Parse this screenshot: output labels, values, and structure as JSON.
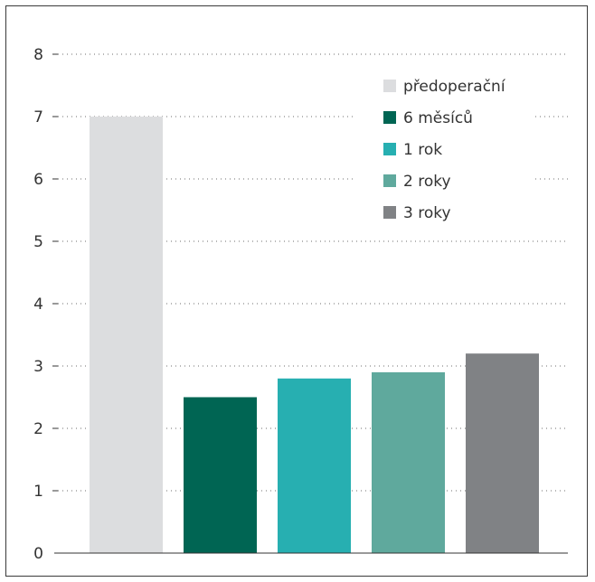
{
  "chart_data": {
    "type": "bar",
    "categories": [
      "předoperační",
      "6 měsíců",
      "1 rok",
      "2 roky",
      "3 roky"
    ],
    "values": [
      7.0,
      2.5,
      2.8,
      2.9,
      3.2
    ],
    "colors": [
      "#dcdddf",
      "#006553",
      "#27afb1",
      "#5fa99d",
      "#808285"
    ],
    "y_ticks": [
      "0",
      "1",
      "2",
      "3",
      "4",
      "5",
      "6",
      "7",
      "8"
    ],
    "ylim": [
      0,
      8
    ],
    "grid": true,
    "legend": "top-right",
    "title": "",
    "xlabel": "",
    "ylabel": ""
  }
}
